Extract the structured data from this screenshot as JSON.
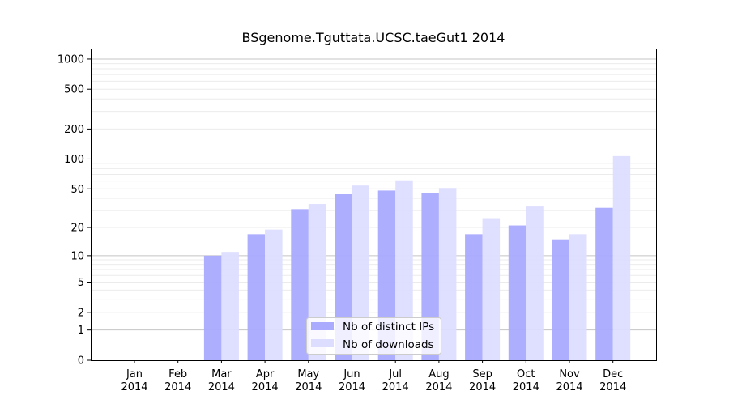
{
  "chart_data": {
    "type": "bar",
    "title": "BSgenome.Tguttata.UCSC.taeGut1 2014",
    "xlabel": "",
    "ylabel": "",
    "yscale": "symlog (log10(v+1))",
    "ylim": [
      0,
      1200
    ],
    "yticks": [
      0,
      1,
      2,
      5,
      10,
      20,
      50,
      100,
      200,
      500,
      1000
    ],
    "grid": true,
    "legend_position": "lower-center",
    "categories": [
      [
        "Jan",
        "2014"
      ],
      [
        "Feb",
        "2014"
      ],
      [
        "Mar",
        "2014"
      ],
      [
        "Apr",
        "2014"
      ],
      [
        "May",
        "2014"
      ],
      [
        "Jun",
        "2014"
      ],
      [
        "Jul",
        "2014"
      ],
      [
        "Aug",
        "2014"
      ],
      [
        "Sep",
        "2014"
      ],
      [
        "Oct",
        "2014"
      ],
      [
        "Nov",
        "2014"
      ],
      [
        "Dec",
        "2014"
      ]
    ],
    "series": [
      {
        "name": "Nb of distinct IPs",
        "color": "#aaaaff",
        "values": [
          0,
          0,
          10,
          17,
          31,
          44,
          48,
          45,
          17,
          21,
          15,
          32
        ]
      },
      {
        "name": "Nb of downloads",
        "color": "#ddddff",
        "values": [
          0,
          0,
          11,
          19,
          35,
          54,
          61,
          51,
          25,
          33,
          17,
          107
        ]
      }
    ]
  }
}
